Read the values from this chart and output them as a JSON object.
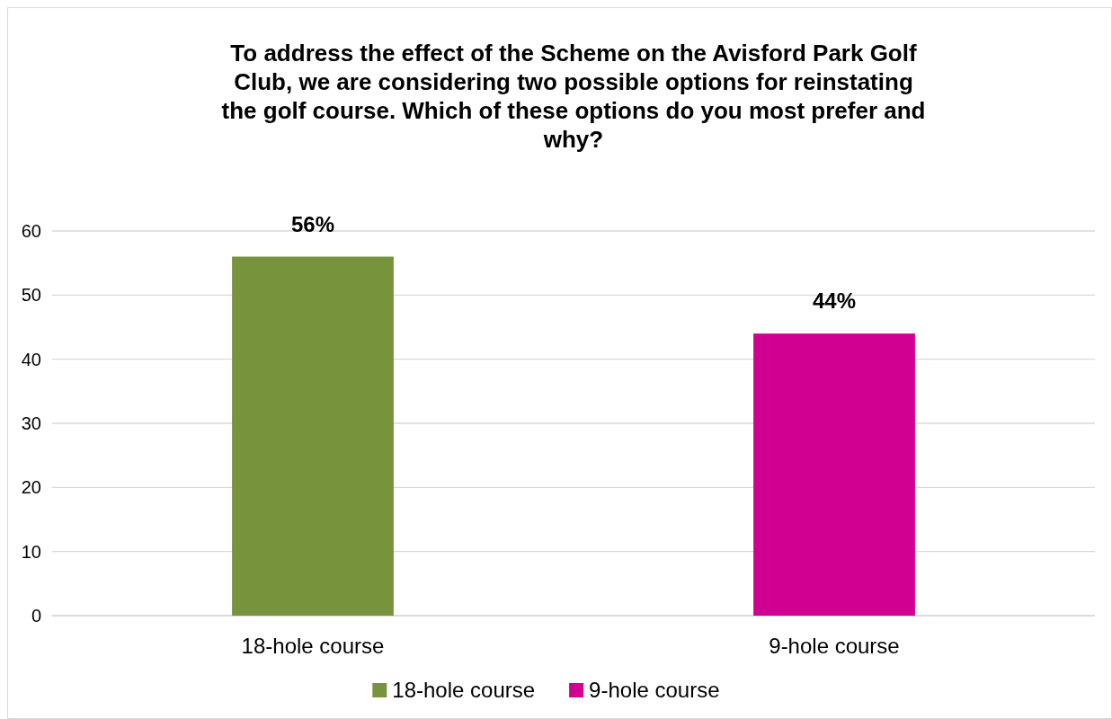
{
  "chart_data": {
    "type": "bar",
    "title": "To address the effect of the Scheme on the Avisford Park Golf Club, we are considering two possible options for reinstating the golf course. Which of these options do you most prefer and why?",
    "categories": [
      "18-hole course",
      "9-hole course"
    ],
    "series": [
      {
        "name": "18-hole course",
        "color": "#77933c",
        "values": [
          56,
          null
        ],
        "value_labels": [
          "56%",
          null
        ]
      },
      {
        "name": "9-hole course",
        "color": "#d10090",
        "values": [
          null,
          44
        ],
        "value_labels": [
          null,
          "44%"
        ]
      }
    ],
    "ylim": [
      0,
      60
    ],
    "yticks": [
      0,
      10,
      20,
      30,
      40,
      50,
      60
    ],
    "grid": "y",
    "legend": "bottom"
  }
}
